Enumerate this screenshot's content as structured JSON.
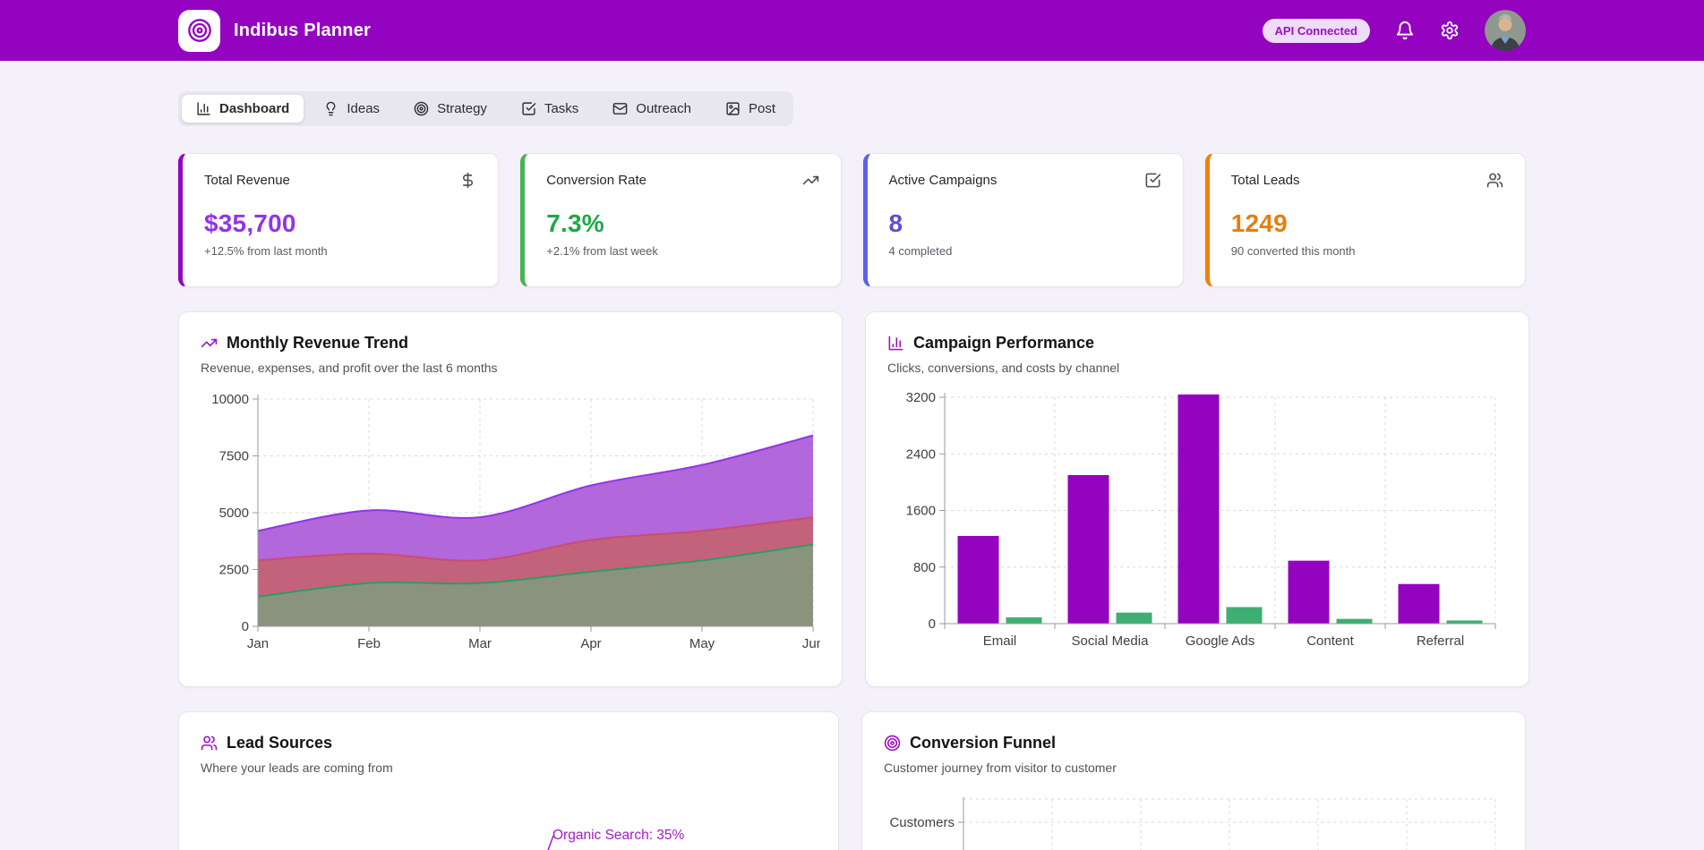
{
  "header": {
    "app_title": "Indibus Planner",
    "badge": "API Connected",
    "logo_icon": "target",
    "action_icons": [
      "bell",
      "settings"
    ],
    "avatar": "user-photo",
    "colors": {
      "bar": "#9403c0",
      "badge_bg": "#eedcf8",
      "badge_text": "#9b0fc0"
    }
  },
  "tabs": [
    {
      "label": "Dashboard",
      "icon": "bar-chart",
      "active": true
    },
    {
      "label": "Ideas",
      "icon": "lightbulb",
      "active": false
    },
    {
      "label": "Strategy",
      "icon": "target",
      "active": false
    },
    {
      "label": "Tasks",
      "icon": "check-square",
      "active": false
    },
    {
      "label": "Outreach",
      "icon": "mail",
      "active": false
    },
    {
      "label": "Post",
      "icon": "image",
      "active": false
    }
  ],
  "stats": [
    {
      "label": "Total Revenue",
      "icon": "dollar-sign",
      "value": "$35,700",
      "subtext": "+12.5% from last month",
      "accent": "#9403c0",
      "value_color": "#9333ea"
    },
    {
      "label": "Conversion Rate",
      "icon": "trending-up",
      "value": "7.3%",
      "subtext": "+2.1% from last week",
      "accent": "#47b353",
      "value_color": "#1ea846"
    },
    {
      "label": "Active Campaigns",
      "icon": "check-square",
      "value": "8",
      "subtext": "4 completed",
      "accent": "#5c60e8",
      "value_color": "#5a4fd8"
    },
    {
      "label": "Total Leads",
      "icon": "users",
      "value": "1249",
      "subtext": "90 converted this month",
      "accent": "#ef8206",
      "value_color": "#e67e0e"
    }
  ],
  "chart_data": [
    {
      "id": "monthly-revenue-trend",
      "type": "area",
      "icon": "trending-up",
      "title": "Monthly Revenue Trend",
      "subtitle": "Revenue, expenses, and profit over the last 6 months",
      "x": [
        "Jan",
        "Feb",
        "Mar",
        "Apr",
        "May",
        "Jun"
      ],
      "series": [
        {
          "name": "revenue",
          "values": [
            4200,
            5100,
            4800,
            6200,
            7100,
            8400
          ],
          "stroke": "#9333ea",
          "fill": "#b267da"
        },
        {
          "name": "expenses",
          "values": [
            2900,
            3200,
            2900,
            3800,
            4200,
            4800
          ],
          "stroke": "#cc4b70",
          "fill": "#c2627b"
        },
        {
          "name": "profit",
          "values": [
            1300,
            1900,
            1900,
            2400,
            2900,
            3600
          ],
          "stroke": "#2c9e5e",
          "fill": "#8a937e"
        }
      ],
      "ylim": [
        0,
        10000
      ],
      "yticks": [
        0,
        2500,
        5000,
        7500,
        10000
      ],
      "grid": true,
      "legend": false
    },
    {
      "id": "campaign-performance",
      "type": "bar",
      "icon": "bar-chart",
      "title": "Campaign Performance",
      "subtitle": "Clicks, conversions, and costs by channel",
      "categories": [
        "Email",
        "Social Media",
        "Google Ads",
        "Content",
        "Referral"
      ],
      "series": [
        {
          "name": "clicks",
          "values": [
            1240,
            2100,
            3240,
            890,
            560
          ],
          "color": "#9403c0"
        },
        {
          "name": "conversions",
          "values": [
            89,
            156,
            234,
            67,
            45
          ],
          "color": "#3fae73"
        }
      ],
      "ylim": [
        0,
        3200
      ],
      "yticks": [
        0,
        800,
        1600,
        2400,
        3200
      ],
      "grid": true,
      "legend": false
    },
    {
      "id": "lead-sources",
      "type": "pie",
      "icon": "users",
      "title": "Lead Sources",
      "subtitle": "Where your leads are coming from",
      "visible_labels": [
        {
          "label": "Organic Search",
          "value": 35,
          "text": "Organic Search: 35%",
          "color": "#a21cc9"
        }
      ]
    },
    {
      "id": "conversion-funnel",
      "type": "funnel",
      "icon": "target",
      "title": "Conversion Funnel",
      "subtitle": "Customer journey from visitor to customer",
      "visible_categories": [
        "Customers"
      ],
      "grid": true
    }
  ]
}
